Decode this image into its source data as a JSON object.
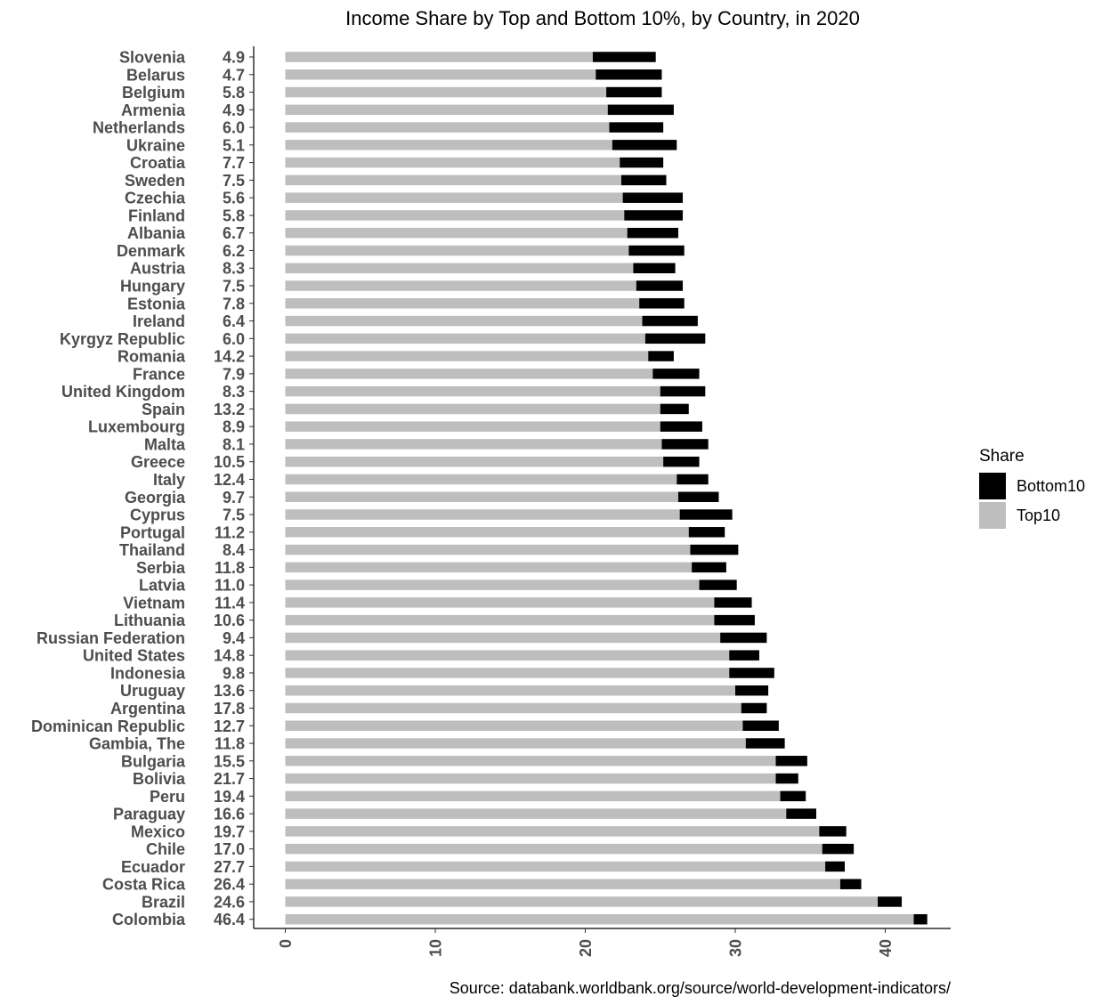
{
  "chart_data": {
    "type": "bar",
    "orientation": "horizontal",
    "stacked": true,
    "title": "Income Share by Top and Bottom 10%, by Country, in 2020",
    "caption": "Source: databank.worldbank.org/source/world-development-indicators/",
    "xlabel": "",
    "ylabel": "",
    "xlim": [
      0,
      44
    ],
    "xticks": [
      "0",
      "10",
      "20",
      "30",
      "40"
    ],
    "grid": false,
    "legend": {
      "title": "Share",
      "position": "right",
      "items": [
        {
          "label": "Bottom10",
          "color": "#000000"
        },
        {
          "label": "Top10",
          "color": "#bebebe"
        }
      ]
    },
    "categories": [
      "Slovenia",
      "Belarus",
      "Belgium",
      "Armenia",
      "Netherlands",
      "Ukraine",
      "Croatia",
      "Sweden",
      "Czechia",
      "Finland",
      "Albania",
      "Denmark",
      "Austria",
      "Hungary",
      "Estonia",
      "Ireland",
      "Kyrgyz Republic",
      "Romania",
      "France",
      "United Kingdom",
      "Spain",
      "Luxembourg",
      "Malta",
      "Greece",
      "Italy",
      "Georgia",
      "Cyprus",
      "Portugal",
      "Thailand",
      "Serbia",
      "Latvia",
      "Vietnam",
      "Lithuania",
      "Russian Federation",
      "United States",
      "Indonesia",
      "Uruguay",
      "Argentina",
      "Dominican Republic",
      "Gambia, The",
      "Bulgaria",
      "Bolivia",
      "Peru",
      "Paraguay",
      "Mexico",
      "Chile",
      "Ecuador",
      "Costa Rica",
      "Brazil",
      "Colombia"
    ],
    "ratio_labels": [
      "4.9",
      "4.7",
      "5.8",
      "4.9",
      "6.0",
      "5.1",
      "7.7",
      "7.5",
      "5.6",
      "5.8",
      "6.7",
      "6.2",
      "8.3",
      "7.5",
      "7.8",
      "6.4",
      "6.0",
      "14.2",
      "7.9",
      "8.3",
      "13.2",
      "8.9",
      "8.1",
      "10.5",
      "12.4",
      "9.7",
      "7.5",
      "11.2",
      "8.4",
      "11.8",
      "11.0",
      "11.4",
      "10.6",
      "9.4",
      "14.8",
      "9.8",
      "13.6",
      "17.8",
      "12.7",
      "11.8",
      "15.5",
      "21.7",
      "19.4",
      "16.6",
      "19.7",
      "17.0",
      "27.7",
      "26.4",
      "24.6",
      "46.4"
    ],
    "series": [
      {
        "name": "Top10",
        "color": "#bebebe",
        "values": [
          20.5,
          20.7,
          21.4,
          21.5,
          21.6,
          21.8,
          22.3,
          22.4,
          22.5,
          22.6,
          22.8,
          22.9,
          23.2,
          23.4,
          23.6,
          23.8,
          24.0,
          24.2,
          24.5,
          25.0,
          25.0,
          25.0,
          25.1,
          25.2,
          26.1,
          26.2,
          26.3,
          26.9,
          27.0,
          27.1,
          27.6,
          28.6,
          28.6,
          29.0,
          29.6,
          29.6,
          30.0,
          30.4,
          30.5,
          30.7,
          32.7,
          32.7,
          33.0,
          33.4,
          35.6,
          35.8,
          36.0,
          37.0,
          39.5,
          41.9
        ]
      },
      {
        "name": "Bottom10",
        "color": "#000000",
        "values": [
          4.2,
          4.4,
          3.7,
          4.4,
          3.6,
          4.3,
          2.9,
          3.0,
          4.0,
          3.9,
          3.4,
          3.7,
          2.8,
          3.1,
          3.0,
          3.7,
          4.0,
          1.7,
          3.1,
          3.0,
          1.9,
          2.8,
          3.1,
          2.4,
          2.1,
          2.7,
          3.5,
          2.4,
          3.2,
          2.3,
          2.5,
          2.5,
          2.7,
          3.1,
          2.0,
          3.0,
          2.2,
          1.7,
          2.4,
          2.6,
          2.1,
          1.5,
          1.7,
          2.0,
          1.8,
          2.1,
          1.3,
          1.4,
          1.6,
          0.9
        ]
      }
    ]
  }
}
